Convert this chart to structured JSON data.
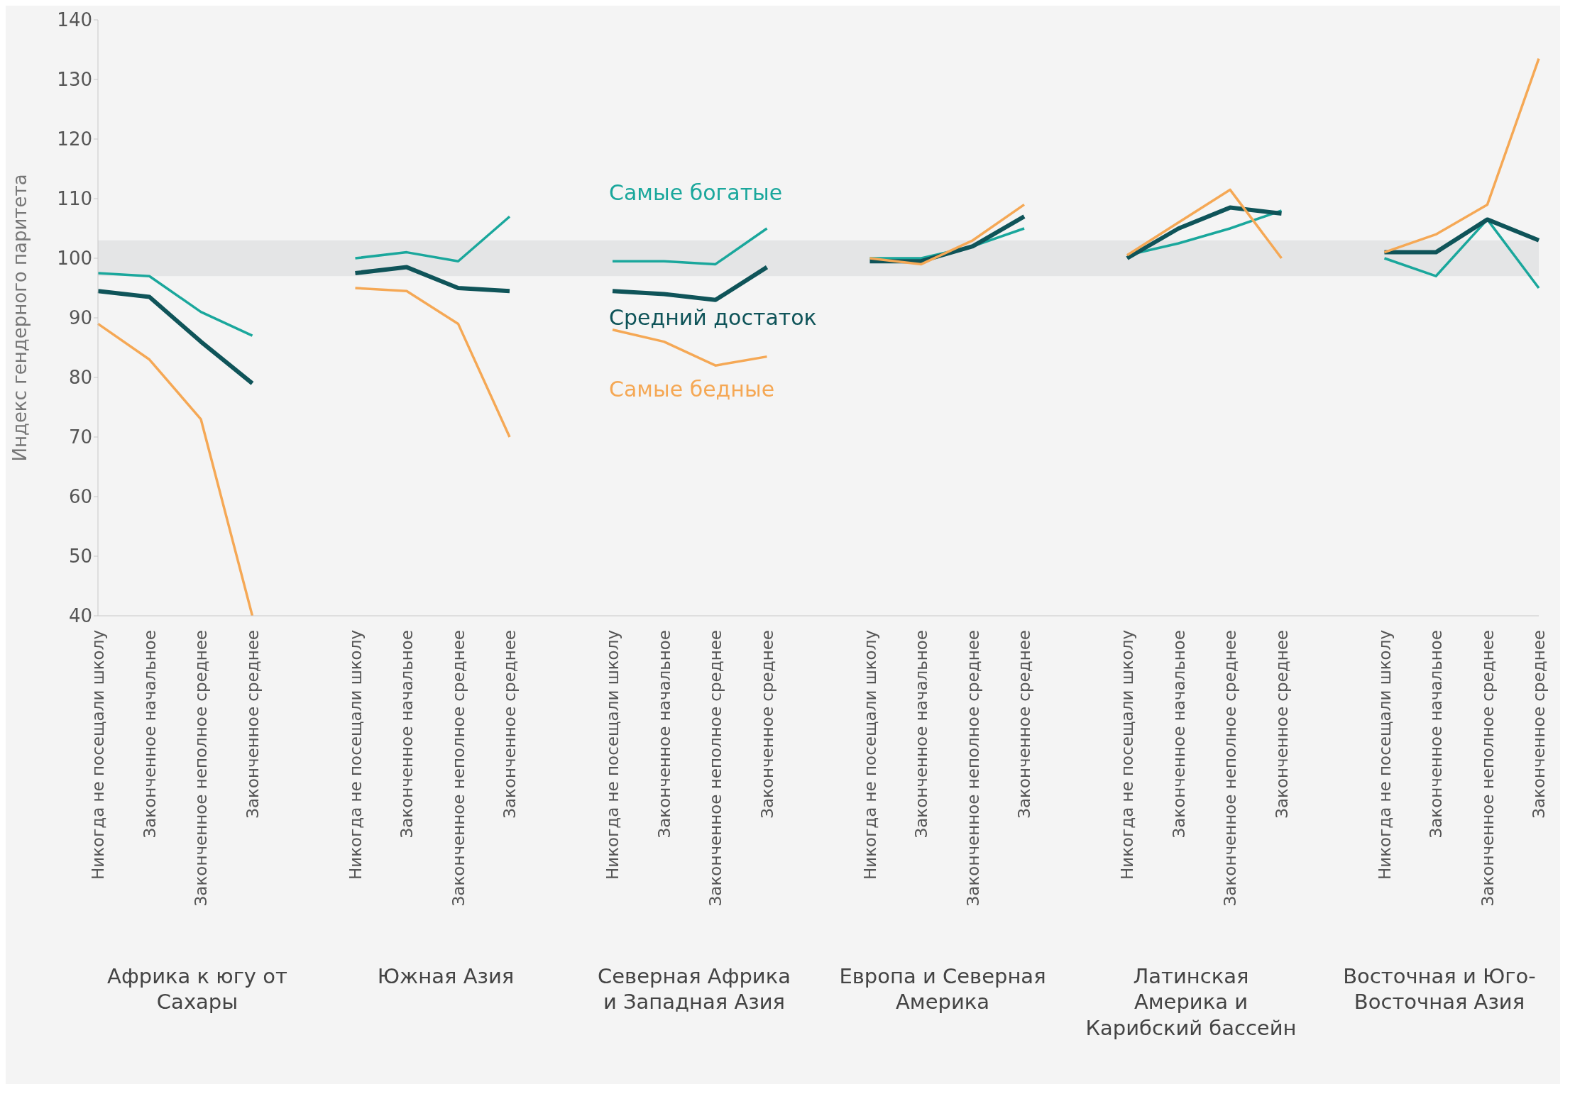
{
  "chart_data": {
    "type": "line",
    "ylabel": "Индекс гендерного паритета",
    "categories": [
      "Никогда не посещали школу",
      "Законченное начальное",
      "Законченное неполное среднее",
      "Законченное среднее",
      null,
      "Никогда не посещали школу",
      "Законченное начальное",
      "Законченное неполное среднее",
      "Законченное среднее",
      null,
      "Никогда не посещали школу",
      "Законченное начальное",
      "Законченное неполное среднее",
      "Законченное среднее",
      null,
      "Никогда не посещали школу",
      "Законченное начальное",
      "Законченное неполное среднее",
      "Законченное среднее",
      null,
      "Никогда не посещали школу",
      "Законченное начальное",
      "Законченное неполное среднее",
      "Законченное среднее",
      null,
      "Никогда не посещали школу",
      "Законченное начальное",
      "Законченное неполное среднее",
      "Законченное среднее"
    ],
    "series": [
      {
        "name": "Самые богатые",
        "color": "#1aa79c",
        "values": [
          97.5,
          97,
          91,
          87,
          null,
          100,
          101,
          99.5,
          107,
          null,
          99.5,
          99.5,
          99,
          105,
          null,
          100,
          100,
          102,
          105,
          null,
          100.5,
          102.5,
          105,
          108,
          null,
          100,
          97,
          106.5,
          95
        ]
      },
      {
        "name": "Средний достаток",
        "color": "#0f5459",
        "values": [
          94.5,
          93.5,
          86,
          79,
          null,
          97.5,
          98.5,
          95,
          94.5,
          null,
          94.5,
          94,
          93,
          98.5,
          null,
          99.5,
          99.5,
          102,
          107,
          null,
          100,
          105,
          108.5,
          107.5,
          null,
          101,
          101,
          106.5,
          103
        ]
      },
      {
        "name": "Самые бедные",
        "color": "#f5a855",
        "values": [
          89,
          83,
          73,
          40,
          null,
          95,
          94.5,
          89,
          70,
          null,
          88,
          86,
          82,
          83.5,
          null,
          100,
          99,
          103,
          109,
          null,
          100.5,
          106,
          111.5,
          100,
          null,
          101,
          104,
          109,
          133.5
        ]
      }
    ],
    "ylim": [
      40,
      140
    ],
    "yticks": [
      40,
      50,
      60,
      70,
      80,
      90,
      100,
      110,
      120,
      130,
      140
    ],
    "bands": [
      {
        "axis": "y",
        "from": 97,
        "to": 103,
        "color": "#e4e5e6"
      }
    ],
    "annotations": [
      "Африка к югу от Сахары",
      "Южная Азия",
      "Северная Африка и Западная Азия",
      "Европа и Северная Америка",
      "Латинская Америка и Карибский бассейн",
      "Восточная и Юго-Восточная Азия"
    ]
  }
}
